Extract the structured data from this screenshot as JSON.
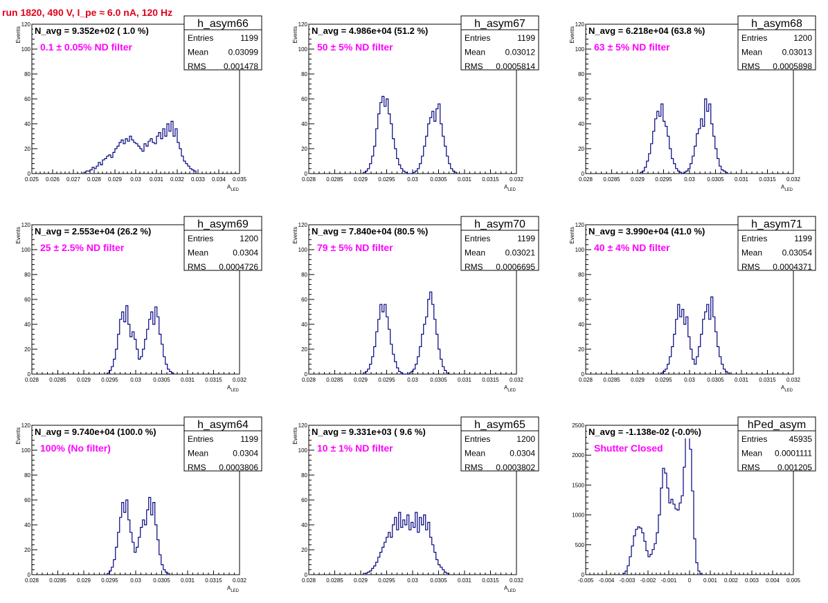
{
  "header": {
    "title": "run 1820,   490 V, I_pe ≈ 6.0 nA, 120 Hz"
  },
  "colors": {
    "title": "#e0001a",
    "annotation": "#ff00ff",
    "histogram": "#000080",
    "axis": "#000000"
  },
  "chart_data": [
    {
      "type": "histogram",
      "name": "h_asym66",
      "n_avg": "N_avg = 9.352e+02 ( 1.0 %)",
      "filter": "0.1 ± 0.05% ND filter",
      "stats": {
        "Entries": "1199",
        "Mean": "0.03099",
        "RMS": "0.001478"
      },
      "ylabel": "Events",
      "xlabel": "A_LED",
      "xlim": [
        0.025,
        0.035
      ],
      "ylim": [
        0,
        120
      ],
      "xticks": [
        "0.025",
        "0.026",
        "0.027",
        "0.028",
        "0.029",
        "0.03",
        "0.031",
        "0.032",
        "0.033",
        "0.034",
        "0.035"
      ],
      "yticks": [
        "0",
        "20",
        "40",
        "60",
        "80",
        "100",
        "120"
      ],
      "x_start": 0.0275,
      "bin_width": 0.0001,
      "counts": [
        1,
        2,
        2,
        3,
        5,
        4,
        6,
        9,
        7,
        11,
        12,
        14,
        15,
        13,
        17,
        20,
        22,
        25,
        27,
        24,
        28,
        26,
        30,
        27,
        25,
        24,
        22,
        20,
        18,
        24,
        22,
        26,
        28,
        25,
        24,
        30,
        33,
        28,
        36,
        30,
        40,
        34,
        42,
        30,
        36,
        25,
        20,
        14,
        10,
        8,
        6,
        4,
        3,
        2
      ]
    },
    {
      "type": "histogram",
      "name": "h_asym67",
      "n_avg": "N_avg = 4.986e+04 (51.2 %)",
      "filter": "50 ± 5% ND filter",
      "stats": {
        "Entries": "1199",
        "Mean": "0.03012",
        "RMS": "0.0005814"
      },
      "ylabel": "Events",
      "xlabel": "A_LED",
      "xlim": [
        0.028,
        0.032
      ],
      "ylim": [
        0,
        120
      ],
      "xticks": [
        "0.028",
        "0.0285",
        "0.029",
        "0.0295",
        "0.03",
        "0.0305",
        "0.031",
        "0.0315",
        "0.032"
      ],
      "yticks": [
        "0",
        "20",
        "40",
        "60",
        "80",
        "100",
        "120"
      ],
      "x_start": 0.02905,
      "bin_width": 4e-05,
      "counts": [
        1,
        2,
        4,
        8,
        14,
        22,
        36,
        48,
        57,
        62,
        54,
        60,
        48,
        40,
        28,
        20,
        12,
        7,
        4,
        2,
        1,
        0,
        0,
        0,
        1,
        2,
        4,
        8,
        14,
        22,
        30,
        40,
        45,
        50,
        42,
        52,
        56,
        40,
        30,
        22,
        14,
        8,
        4,
        2,
        1
      ]
    },
    {
      "type": "histogram",
      "name": "h_asym68",
      "n_avg": "N_avg = 6.218e+04 (63.8 %)",
      "filter": "63 ± 5% ND filter",
      "stats": {
        "Entries": "1200",
        "Mean": "0.03013",
        "RMS": "0.0005898"
      },
      "ylabel": "Events",
      "xlabel": "A_LED",
      "xlim": [
        0.028,
        0.032
      ],
      "ylim": [
        0,
        120
      ],
      "xticks": [
        "0.028",
        "0.0285",
        "0.029",
        "0.0295",
        "0.03",
        "0.0305",
        "0.031",
        "0.0315",
        "0.032"
      ],
      "yticks": [
        "0",
        "20",
        "40",
        "60",
        "80",
        "100",
        "120"
      ],
      "x_start": 0.02905,
      "bin_width": 4e-05,
      "counts": [
        1,
        2,
        5,
        10,
        16,
        24,
        34,
        44,
        50,
        46,
        56,
        42,
        38,
        30,
        20,
        12,
        8,
        4,
        2,
        1,
        0,
        1,
        2,
        4,
        8,
        14,
        22,
        32,
        36,
        44,
        38,
        60,
        50,
        56,
        40,
        30,
        20,
        12,
        6,
        3,
        2,
        1
      ]
    },
    {
      "type": "histogram",
      "name": "h_asym69",
      "n_avg": "N_avg = 2.553e+04 (26.2 %)",
      "filter": "25 ± 2.5% ND filter",
      "stats": {
        "Entries": "1200",
        "Mean": "0.0304",
        "RMS": "0.0004726"
      },
      "ylabel": "Events",
      "xlabel": "A_LED",
      "xlim": [
        0.028,
        0.032
      ],
      "ylim": [
        0,
        120
      ],
      "xticks": [
        "0.028",
        "0.0285",
        "0.029",
        "0.0295",
        "0.03",
        "0.0305",
        "0.031",
        "0.0315",
        "0.032"
      ],
      "yticks": [
        "0",
        "20",
        "40",
        "60",
        "80",
        "100",
        "120"
      ],
      "x_start": 0.02945,
      "bin_width": 4e-05,
      "counts": [
        1,
        3,
        6,
        12,
        20,
        32,
        44,
        50,
        42,
        55,
        40,
        30,
        34,
        28,
        20,
        12,
        14,
        20,
        28,
        36,
        44,
        50,
        40,
        54,
        46,
        32,
        24,
        14,
        8,
        4,
        2,
        1
      ]
    },
    {
      "type": "histogram",
      "name": "h_asym70",
      "n_avg": "N_avg = 7.840e+04 (80.5 %)",
      "filter": "79 ± 5% ND filter",
      "stats": {
        "Entries": "1199",
        "Mean": "0.03021",
        "RMS": "0.0006695"
      },
      "ylabel": "Events",
      "xlabel": "A_LED",
      "xlim": [
        0.028,
        0.032
      ],
      "ylim": [
        0,
        120
      ],
      "xticks": [
        "0.028",
        "0.0285",
        "0.029",
        "0.0295",
        "0.03",
        "0.0305",
        "0.031",
        "0.0315",
        "0.032"
      ],
      "yticks": [
        "0",
        "20",
        "40",
        "60",
        "80",
        "100",
        "120"
      ],
      "x_start": 0.02905,
      "bin_width": 4e-05,
      "counts": [
        1,
        2,
        4,
        8,
        14,
        22,
        34,
        44,
        56,
        50,
        56,
        46,
        36,
        24,
        16,
        10,
        5,
        2,
        1,
        0,
        0,
        0,
        1,
        2,
        4,
        8,
        14,
        22,
        32,
        40,
        46,
        60,
        66,
        56,
        44,
        32,
        20,
        12,
        6,
        3,
        1
      ]
    },
    {
      "type": "histogram",
      "name": "h_asym71",
      "n_avg": "N_avg = 3.990e+04 (41.0 %)",
      "filter": "40 ± 4% ND filter",
      "stats": {
        "Entries": "1199",
        "Mean": "0.03054",
        "RMS": "0.0004371"
      },
      "ylabel": "Events",
      "xlabel": "A_LED",
      "xlim": [
        0.028,
        0.032
      ],
      "ylim": [
        0,
        120
      ],
      "xticks": [
        "0.028",
        "0.0285",
        "0.029",
        "0.0295",
        "0.03",
        "0.0305",
        "0.031",
        "0.0315",
        "0.032"
      ],
      "yticks": [
        "0",
        "20",
        "40",
        "60",
        "80",
        "100",
        "120"
      ],
      "x_start": 0.02945,
      "bin_width": 4e-05,
      "counts": [
        1,
        2,
        4,
        8,
        14,
        22,
        32,
        44,
        56,
        46,
        52,
        40,
        46,
        30,
        20,
        12,
        8,
        14,
        22,
        32,
        44,
        50,
        56,
        44,
        62,
        46,
        34,
        22,
        14,
        8,
        4,
        2,
        1
      ]
    },
    {
      "type": "histogram",
      "name": "h_asym64",
      "n_avg": "N_avg = 9.740e+04 (100.0 %)",
      "filter": "100% (No filter)",
      "stats": {
        "Entries": "1199",
        "Mean": "0.0304",
        "RMS": "0.0003806"
      },
      "ylabel": "Events",
      "xlabel": "A_LED",
      "xlim": [
        0.028,
        0.032
      ],
      "ylim": [
        0,
        120
      ],
      "xticks": [
        "0.028",
        "0.0285",
        "0.029",
        "0.0295",
        "0.03",
        "0.0305",
        "0.031",
        "0.0315",
        "0.032"
      ],
      "yticks": [
        "0",
        "20",
        "40",
        "60",
        "80",
        "100",
        "120"
      ],
      "x_start": 0.02945,
      "bin_width": 4e-05,
      "counts": [
        1,
        3,
        6,
        12,
        22,
        34,
        46,
        58,
        50,
        60,
        44,
        34,
        26,
        18,
        22,
        30,
        38,
        44,
        40,
        52,
        62,
        48,
        58,
        40,
        28,
        16,
        8,
        4,
        2,
        1
      ]
    },
    {
      "type": "histogram",
      "name": "h_asym65",
      "n_avg": "N_avg = 9.331e+03 ( 9.6 %)",
      "filter": "10 ± 1% ND filter",
      "stats": {
        "Entries": "1200",
        "Mean": "0.0304",
        "RMS": "0.0003802"
      },
      "ylabel": "Events",
      "xlabel": "A_LED",
      "xlim": [
        0.028,
        0.032
      ],
      "ylim": [
        0,
        120
      ],
      "xticks": [
        "0.028",
        "0.0285",
        "0.029",
        "0.0295",
        "0.03",
        "0.0305",
        "0.031",
        "0.0315",
        "0.032"
      ],
      "yticks": [
        "0",
        "20",
        "40",
        "60",
        "80",
        "100",
        "120"
      ],
      "x_start": 0.02905,
      "bin_width": 4e-05,
      "counts": [
        1,
        1,
        2,
        3,
        5,
        7,
        10,
        14,
        18,
        22,
        26,
        30,
        34,
        30,
        40,
        46,
        36,
        50,
        38,
        44,
        40,
        48,
        36,
        42,
        38,
        50,
        34,
        46,
        40,
        48,
        36,
        42,
        30,
        24,
        18,
        12,
        8,
        6,
        4,
        2,
        1
      ]
    },
    {
      "type": "histogram",
      "name": "hPed_asym",
      "n_avg": "N_avg = -1.138e-02 (-0.0%)",
      "filter": "Shutter Closed",
      "stats": {
        "Entries": "45935",
        "Mean": "0.0001111",
        "RMS": "0.001205"
      },
      "ylabel": "",
      "xlabel": "",
      "xlim": [
        -0.005,
        0.005
      ],
      "ylim": [
        0,
        2500
      ],
      "xticks": [
        "-0.005",
        "-0.004",
        "-0.003",
        "-0.002",
        "-0.001",
        "0",
        "0.001",
        "0.002",
        "0.003",
        "0.004",
        "0.005"
      ],
      "yticks": [
        "0",
        "500",
        "1000",
        "1500",
        "2000",
        "2500"
      ],
      "x_start": -0.0032,
      "bin_width": 0.0001,
      "counts": [
        20,
        60,
        150,
        300,
        480,
        650,
        760,
        800,
        780,
        700,
        560,
        400,
        300,
        340,
        420,
        520,
        700,
        1000,
        1450,
        1780,
        1700,
        1450,
        1200,
        1260,
        1180,
        1100,
        1080,
        1200,
        1320,
        1800,
        2300,
        2450,
        2100,
        1400,
        600,
        200,
        60,
        15
      ]
    }
  ]
}
